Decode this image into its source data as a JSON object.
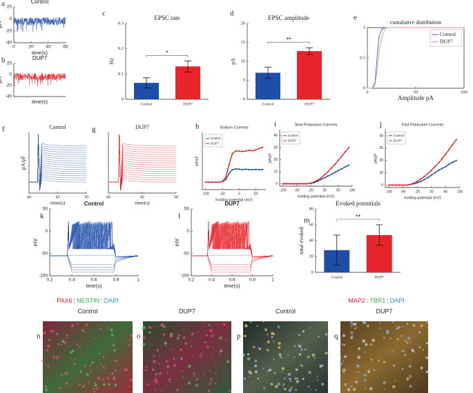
{
  "chart_data": [
    {
      "type": "trace",
      "label": "a",
      "title": "Control",
      "color": "#1f4ea8",
      "ylabel": "pA",
      "xlabel": "time(s)",
      "xlim": [
        0,
        60
      ],
      "xticks": [
        0,
        20,
        40,
        60
      ],
      "ylim": [
        -40,
        20
      ],
      "yticks": [
        20,
        0,
        -20,
        -40
      ],
      "pattern": "noise"
    },
    {
      "type": "trace",
      "label": "b",
      "title": "DUP7",
      "color": "#e8242a",
      "ylabel": "pA",
      "xlabel": "time(s)",
      "xlim": [
        0,
        60
      ],
      "ylim": [
        -40,
        20
      ],
      "yticks": [
        20,
        0,
        -20,
        -40
      ],
      "pattern": "noise"
    },
    {
      "type": "bar",
      "label": "c",
      "title": "EPSC rate",
      "ylabel": "Hz",
      "categories": [
        "Control",
        "DUP7"
      ],
      "values": [
        0.065,
        0.13
      ],
      "errors": [
        0.02,
        0.022
      ],
      "colors": [
        "#1f4ea8",
        "#e8242a"
      ],
      "ylim": [
        0,
        0.3
      ],
      "yticks": [
        0,
        0.1,
        0.2,
        0.3
      ],
      "annotation": "*"
    },
    {
      "type": "bar",
      "label": "d",
      "title": "EPSC amplitude",
      "ylabel": "pA",
      "categories": [
        "Control",
        "DUP7"
      ],
      "values": [
        7,
        12.7
      ],
      "errors": [
        1.5,
        0.9
      ],
      "colors": [
        "#1f4ea8",
        "#e8242a"
      ],
      "ylim": [
        0,
        20
      ],
      "yticks": [
        0,
        5,
        10,
        15,
        20
      ],
      "annotation": "**"
    },
    {
      "type": "line",
      "label": "e",
      "title": "cumulative distribution",
      "xlabel": "Amplitude pA",
      "x": [
        0,
        5,
        8,
        10,
        12,
        15,
        18,
        20,
        100
      ],
      "series": [
        {
          "name": "Control",
          "color": "#3a5fd0",
          "values": [
            0,
            0,
            0.1,
            0.5,
            0.85,
            0.97,
            1,
            1,
            1
          ]
        },
        {
          "name": "DUP7",
          "color": "#f08aa0",
          "values": [
            0,
            0,
            0.05,
            0.3,
            0.6,
            0.85,
            0.97,
            1,
            1
          ]
        }
      ],
      "xlim": [
        0,
        100
      ],
      "xticks": [
        0,
        50,
        100
      ],
      "ylim": [
        0,
        1
      ],
      "yticks": [
        0,
        0.5,
        1
      ],
      "legend": "top-right",
      "box": true
    },
    {
      "type": "trace",
      "label": "f",
      "title": "Control",
      "color": "#1f4ea8",
      "ylabel": "pA/pF",
      "xlabel": "time(s)",
      "xlim": [
        40,
        50
      ],
      "xticks": [
        40,
        45,
        50
      ],
      "ylim": [
        -1,
        1
      ],
      "pattern": "steps"
    },
    {
      "type": "trace",
      "label": "g",
      "title": "DUP7",
      "color": "#e8242a",
      "xlabel": "time(s)",
      "xlim": [
        40,
        50
      ],
      "xticks": [
        40,
        45,
        50
      ],
      "ylim": [
        -1,
        1
      ],
      "pattern": "steps"
    },
    {
      "type": "line",
      "label": "h",
      "title": "Sodium Currents",
      "xlabel": "holding potential (mV)",
      "ylabel": "pA/pF",
      "x": [
        -100,
        -90,
        -80,
        -70,
        -60,
        -50,
        -40,
        -30,
        -20,
        -10,
        0,
        10,
        20,
        30,
        40,
        50,
        60,
        70
      ],
      "series": [
        {
          "name": "Control",
          "color": "#1f4ea8",
          "values": [
            0,
            0,
            0,
            0,
            0,
            0.2,
            1,
            3.5,
            5,
            5.3,
            5.2,
            5,
            5.2,
            5,
            5,
            5.1,
            5,
            5
          ]
        },
        {
          "name": "DUP7",
          "color": "#e8242a",
          "values": [
            0,
            0,
            0,
            0,
            0,
            0.3,
            2,
            7,
            11.5,
            12.5,
            12.5,
            12.3,
            12.5,
            12.8,
            12.6,
            13,
            13.5,
            14
          ]
        }
      ],
      "xlim": [
        -110,
        80
      ],
      "xticks": [
        -100,
        -50,
        0,
        50
      ],
      "ylim": [
        -3,
        20
      ],
      "legend": "top-left",
      "markers": true
    },
    {
      "type": "line",
      "label": "i",
      "title": "Slow Potassium Currents",
      "xlabel": "holding potential (mV)",
      "ylabel": "pA/pF",
      "x": [
        -100,
        -90,
        -80,
        -70,
        -60,
        -50,
        -40,
        -30,
        -20,
        -10,
        0,
        10,
        20,
        30,
        40,
        50,
        60,
        70,
        80,
        90
      ],
      "series": [
        {
          "name": "Control",
          "color": "#1f4ea8",
          "values": [
            0,
            0,
            0,
            0,
            0,
            0,
            0,
            0,
            0.3,
            1,
            2,
            3.5,
            5,
            6.5,
            8,
            9.5,
            11,
            12.5,
            14,
            15.5
          ]
        },
        {
          "name": "DUP7",
          "color": "#e8242a",
          "values": [
            0,
            0,
            0,
            0,
            0,
            0,
            0,
            0,
            0.5,
            1.5,
            3,
            5,
            7.5,
            10,
            13,
            16,
            19.5,
            23,
            26.5,
            30
          ]
        }
      ],
      "xlim": [
        -110,
        100
      ],
      "xticks": [
        -100,
        -60,
        -20,
        20,
        60,
        100
      ],
      "ylim": [
        -2,
        45
      ],
      "yticks": [
        0,
        10,
        20,
        30,
        40
      ],
      "legend": "top-left",
      "markers": true
    },
    {
      "type": "line",
      "label": "j",
      "title": "Fast Potassium Currents",
      "xlabel": "holding potential (mV)",
      "ylabel": "pA/pF",
      "x": [
        -100,
        -90,
        -80,
        -70,
        -60,
        -50,
        -40,
        -30,
        -20,
        -10,
        0,
        10,
        20,
        30,
        40,
        50,
        60,
        70,
        80,
        90
      ],
      "series": [
        {
          "name": "Control",
          "color": "#1f4ea8",
          "values": [
            0,
            0,
            0,
            0,
            0,
            0,
            0.5,
            1,
            2,
            3,
            4.5,
            6,
            8,
            10,
            12,
            13.5,
            15,
            17,
            18.5,
            20
          ]
        },
        {
          "name": "DUP7",
          "color": "#e8242a",
          "values": [
            0,
            0,
            0,
            0,
            0,
            0,
            0.5,
            1.5,
            3,
            5,
            7,
            9.5,
            12,
            15,
            18,
            21.5,
            25,
            29,
            33,
            37
          ]
        }
      ],
      "xlim": [
        -110,
        100
      ],
      "xticks": [
        -100,
        -60,
        -20,
        20,
        60,
        100
      ],
      "ylim": [
        -2,
        45
      ],
      "yticks": [
        0,
        10,
        20,
        30,
        40
      ],
      "legend": "top-left",
      "markers": true
    },
    {
      "type": "trace",
      "label": "k",
      "title": "Control",
      "color": "#1f4ea8",
      "ylabel": "mV",
      "xlabel": "time(s)",
      "xlim": [
        0.2,
        1
      ],
      "xticks": [
        0.2,
        0.4,
        0.6,
        0.8,
        1
      ],
      "ylim": [
        -100,
        50
      ],
      "yticks": [
        50,
        0,
        -50,
        -100
      ],
      "pattern": "spikes"
    },
    {
      "type": "trace",
      "label": "l",
      "title": "DUP7",
      "color": "#e8242a",
      "ylabel": "mV",
      "xlabel": "time(s)",
      "xlim": [
        0.2,
        1
      ],
      "xticks": [
        0.2,
        0.4,
        0.6,
        0.8,
        1
      ],
      "ylim": [
        -100,
        50
      ],
      "yticks": [
        50,
        0,
        -50,
        -100
      ],
      "pattern": "spikes"
    },
    {
      "type": "bar",
      "label": "m",
      "title": "Evoked potentials",
      "ylabel": "total evoked",
      "categories": [
        "Control",
        "DUP7"
      ],
      "values": [
        28,
        47
      ],
      "errors": [
        19,
        13
      ],
      "colors": [
        "#1f4ea8",
        "#e8242a"
      ],
      "ylim": [
        0,
        80
      ],
      "yticks": [
        0,
        20,
        40,
        60,
        80
      ],
      "annotation": "**"
    }
  ],
  "micrographs": {
    "separator": ":",
    "stain_colors": [
      "#e8202a",
      "#2fb34a",
      "#1d9ad6"
    ],
    "groups": [
      {
        "stains": [
          "PAX6",
          "NESTIN",
          "DAPI"
        ],
        "panels": [
          {
            "label": "n",
            "title": "Control"
          },
          {
            "label": "o",
            "title": "DUP7"
          }
        ]
      },
      {
        "stains": [
          "MAP2",
          "TBR1",
          "DAPI"
        ],
        "panels": [
          {
            "label": "p",
            "title": "Control"
          },
          {
            "label": "q",
            "title": "DUP7"
          }
        ]
      }
    ]
  }
}
